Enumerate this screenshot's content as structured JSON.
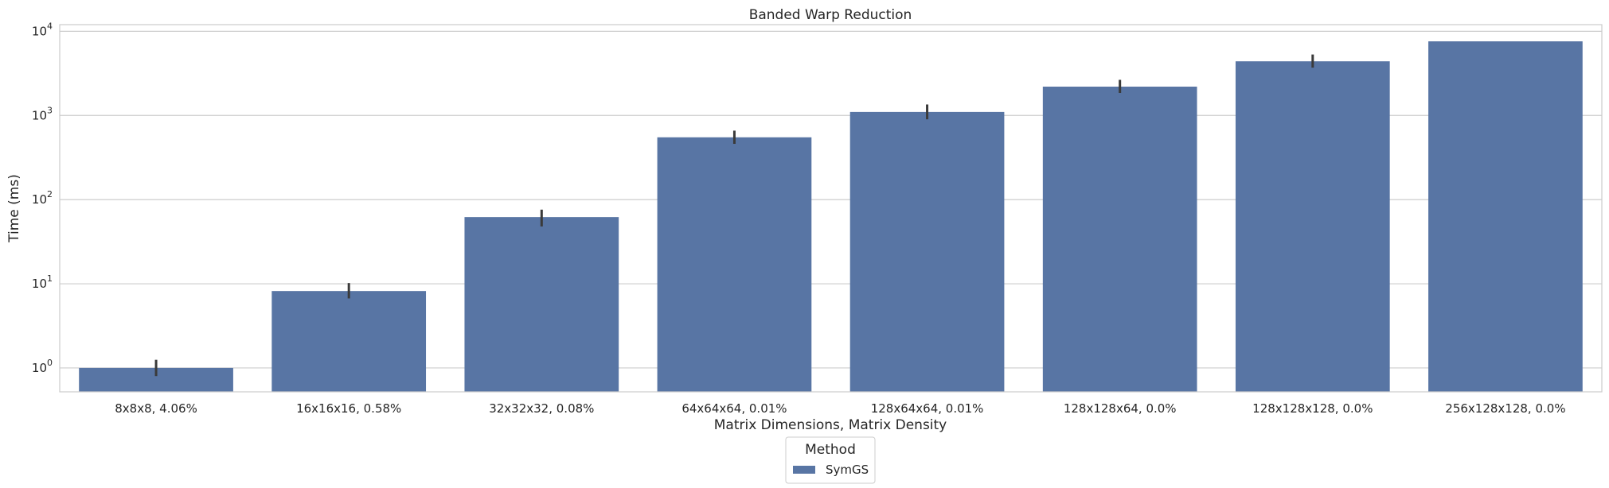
{
  "chart_data": {
    "type": "bar",
    "title": "Banded Warp Reduction",
    "xlabel": "Matrix Dimensions, Matrix Density",
    "ylabel": "Time (ms)",
    "yscale": "log",
    "ylim": [
      0.52,
      12000
    ],
    "yticks": [
      1,
      10,
      100,
      1000,
      10000
    ],
    "ytick_labels": [
      {
        "base": "10",
        "exp": "0"
      },
      {
        "base": "10",
        "exp": "1"
      },
      {
        "base": "10",
        "exp": "2"
      },
      {
        "base": "10",
        "exp": "3"
      },
      {
        "base": "10",
        "exp": "4"
      }
    ],
    "grid": true,
    "categories": [
      "8x8x8, 4.06%",
      "16x16x16, 0.58%",
      "32x32x32, 0.08%",
      "64x64x64, 0.01%",
      "128x64x64, 0.01%",
      "128x128x64, 0.0%",
      "128x128x128, 0.0%",
      "256x128x128, 0.0%"
    ],
    "series": [
      {
        "name": "SymGS",
        "color": "#5875a4",
        "values": [
          1.0,
          8.2,
          62,
          550,
          1100,
          2200,
          4400,
          7600
        ],
        "error_low": [
          0.8,
          6.7,
          48,
          460,
          900,
          1850,
          3700,
          null
        ],
        "error_high": [
          1.25,
          10.2,
          76,
          660,
          1350,
          2650,
          5300,
          null
        ]
      }
    ],
    "legend": {
      "title": "Method",
      "placement": "bottom-center"
    }
  }
}
